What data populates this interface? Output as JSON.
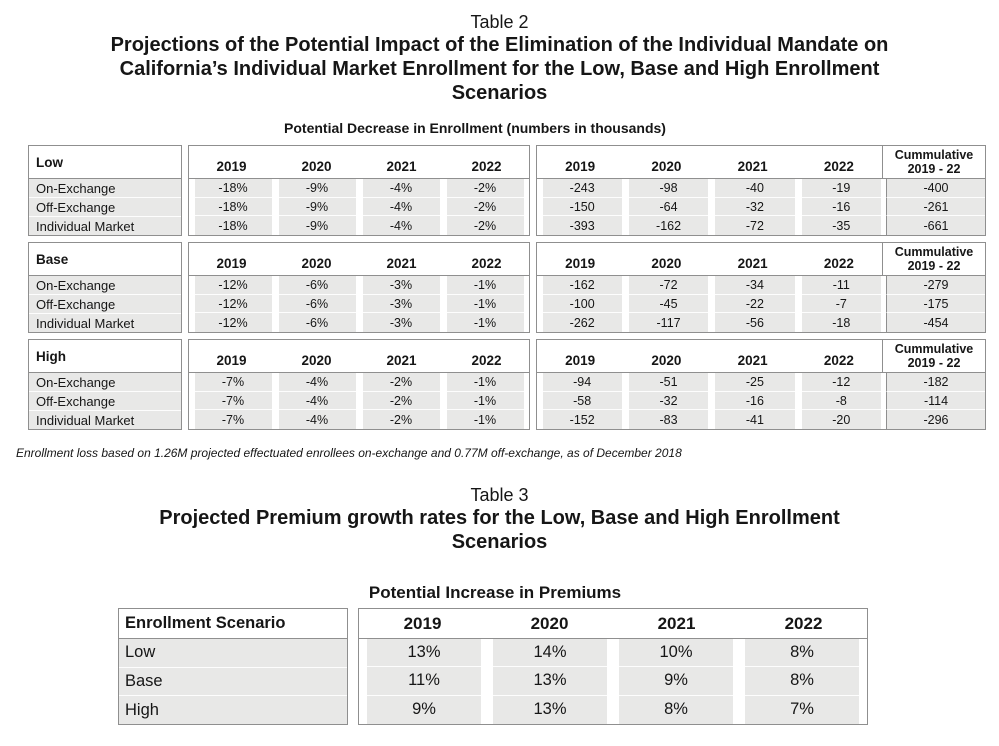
{
  "table2": {
    "caption": "Table 2",
    "title_lines": [
      "Projections of the Potential Impact of the Elimination of the Individual Mandate on",
      "California’s Individual Market Enrollment for the Low, Base and High Enrollment",
      "Scenarios"
    ],
    "subtitle": "Potential Decrease in Enrollment (numbers in thousands)",
    "years": [
      "2019",
      "2020",
      "2021",
      "2022"
    ],
    "cum_header_line1": "Cummulative",
    "cum_header_line2": "2019 - 22",
    "row_labels": [
      "On-Exchange",
      "Off-Exchange",
      "Individual Market"
    ],
    "scenarios": [
      {
        "name": "Low",
        "pct": [
          [
            "-18%",
            "-9%",
            "-4%",
            "-2%"
          ],
          [
            "-18%",
            "-9%",
            "-4%",
            "-2%"
          ],
          [
            "-18%",
            "-9%",
            "-4%",
            "-2%"
          ]
        ],
        "nums": [
          [
            "-243",
            "-98",
            "-40",
            "-19"
          ],
          [
            "-150",
            "-64",
            "-32",
            "-16"
          ],
          [
            "-393",
            "-162",
            "-72",
            "-35"
          ]
        ],
        "cum": [
          "-400",
          "-261",
          "-661"
        ]
      },
      {
        "name": "Base",
        "pct": [
          [
            "-12%",
            "-6%",
            "-3%",
            "-1%"
          ],
          [
            "-12%",
            "-6%",
            "-3%",
            "-1%"
          ],
          [
            "-12%",
            "-6%",
            "-3%",
            "-1%"
          ]
        ],
        "nums": [
          [
            "-162",
            "-72",
            "-34",
            "-11"
          ],
          [
            "-100",
            "-45",
            "-22",
            "-7"
          ],
          [
            "-262",
            "-117",
            "-56",
            "-18"
          ]
        ],
        "cum": [
          "-279",
          "-175",
          "-454"
        ]
      },
      {
        "name": "High",
        "pct": [
          [
            "-7%",
            "-4%",
            "-2%",
            "-1%"
          ],
          [
            "-7%",
            "-4%",
            "-2%",
            "-1%"
          ],
          [
            "-7%",
            "-4%",
            "-2%",
            "-1%"
          ]
        ],
        "nums": [
          [
            "-94",
            "-51",
            "-25",
            "-12"
          ],
          [
            "-58",
            "-32",
            "-16",
            "-8"
          ],
          [
            "-152",
            "-83",
            "-41",
            "-20"
          ]
        ],
        "cum": [
          "-182",
          "-114",
          "-296"
        ]
      }
    ],
    "footnote": "Enrollment loss based on 1.26M projected effectuated enrollees on-exchange and 0.77M off-exchange, as of December 2018"
  },
  "table3": {
    "caption": "Table 3",
    "title_lines": [
      "Projected Premium growth rates for the Low, Base and High Enrollment",
      "Scenarios"
    ],
    "subtitle": "Potential Increase in Premiums",
    "col_header": "Enrollment Scenario",
    "years": [
      "2019",
      "2020",
      "2021",
      "2022"
    ],
    "rows": [
      {
        "label": "Low",
        "values": [
          "13%",
          "14%",
          "10%",
          "8%"
        ]
      },
      {
        "label": "Base",
        "values": [
          "11%",
          "13%",
          "9%",
          "8%"
        ]
      },
      {
        "label": "High",
        "values": [
          "9%",
          "13%",
          "8%",
          "7%"
        ]
      }
    ]
  }
}
